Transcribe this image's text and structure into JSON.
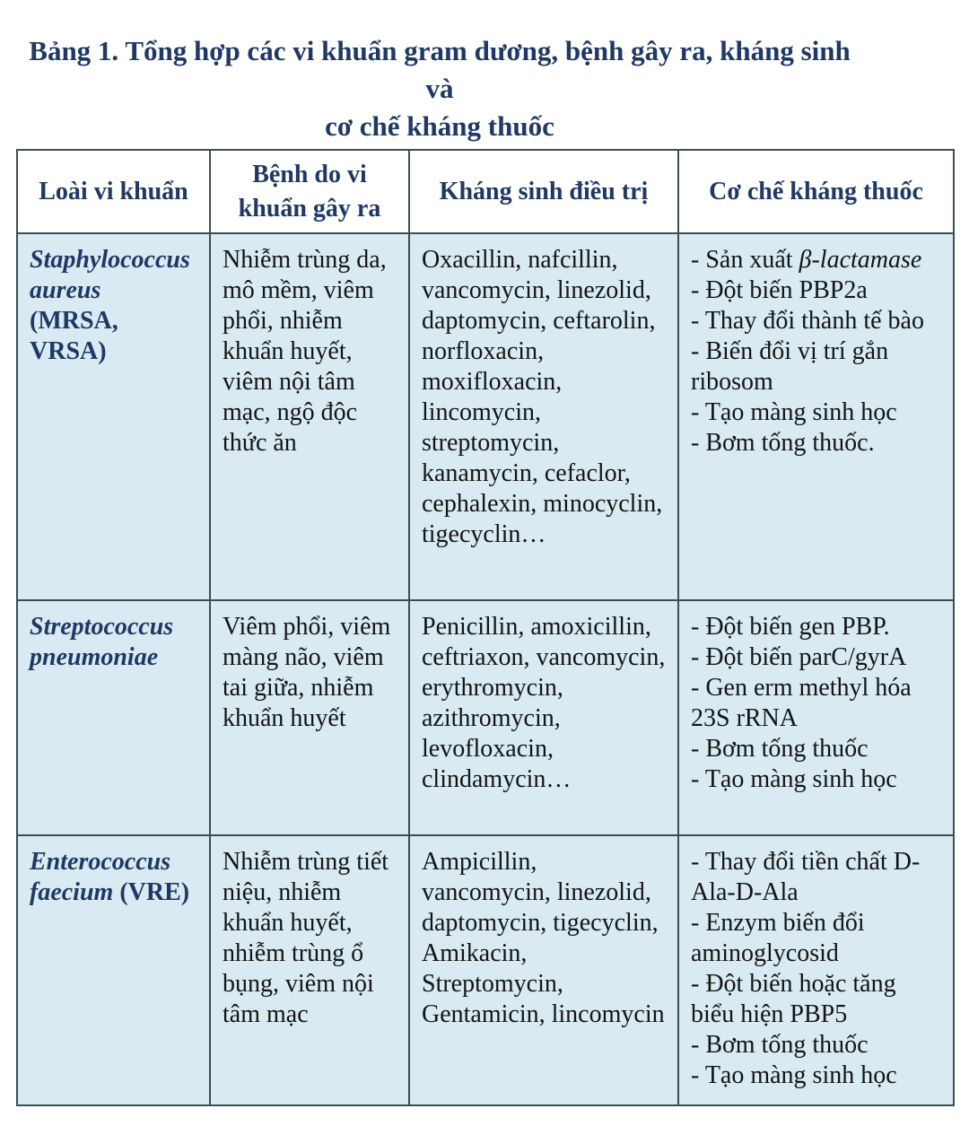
{
  "page": {
    "caption_line1": "Bảng 1. Tổng hợp các vi khuẩn gram dương, bệnh gây ra, kháng sinh và",
    "caption_line2": "cơ chế kháng thuốc"
  },
  "colors": {
    "heading_navy": "#1f3864",
    "cell_background": "#d9eaf2",
    "border": "#3d4d57",
    "body_text": "#141414"
  },
  "table": {
    "headers": [
      "Loài vi khuẩn",
      "Bệnh do vi khuẩn gây ra",
      "Kháng sinh điều trị",
      "Cơ chế kháng thuốc"
    ],
    "rows": [
      {
        "species_name": "Staphylococcus aureus",
        "species_abbr": "(MRSA, VRSA)",
        "diseases": "Nhiễm trùng da, mô mềm, viêm phổi, nhiễm khuẩn huyết, viêm nội tâm mạc, ngộ độc thức ăn",
        "antibiotics": "Oxacillin, nafcillin, vancomycin, linezolid, daptomycin, ceftarolin, norfloxacin, moxifloxacin, lincomycin, streptomycin, kanamycin, cefaclor, cephalexin, minocyclin, tigecyclin…",
        "mechanisms": [
          {
            "pre": "- Sản xuất ",
            "it": "β-lactamase"
          },
          "- Đột biến PBP2a",
          "- Thay đổi thành tế bào",
          "- Biến đổi vị trí gắn ribosom",
          "- Tạo màng sinh học",
          "- Bơm tống thuốc."
        ]
      },
      {
        "species_name": "Streptococcus pneumoniae",
        "species_abbr": "",
        "diseases": "Viêm phổi, viêm màng não, viêm tai giữa, nhiễm khuẩn huyết",
        "antibiotics": "Penicillin, amoxicillin, ceftriaxon, vancomycin, erythromycin, azithromycin, levofloxacin, clindamycin…",
        "mechanisms": [
          "- Đột biến gen PBP.",
          "- Đột biến parC/gyrA",
          "- Gen erm methyl hóa 23S rRNA",
          "- Bơm tống thuốc",
          "- Tạo màng sinh học"
        ]
      },
      {
        "species_name": "Enterococcus faecium",
        "species_abbr": "(VRE)",
        "diseases": "Nhiễm trùng tiết niệu, nhiễm khuẩn huyết, nhiễm trùng ổ bụng, viêm nội tâm mạc",
        "antibiotics": "Ampicillin, vancomycin, linezolid, daptomycin, tigecyclin, Amikacin, Streptomycin, Gentamicin, lincomycin",
        "mechanisms": [
          "- Thay đổi tiền chất D-Ala-D-Ala",
          "- Enzym biến đổi aminoglycosid",
          "- Đột biến hoặc tăng biểu hiện PBP5",
          "- Bơm tống thuốc",
          "- Tạo màng sinh học"
        ]
      }
    ]
  }
}
